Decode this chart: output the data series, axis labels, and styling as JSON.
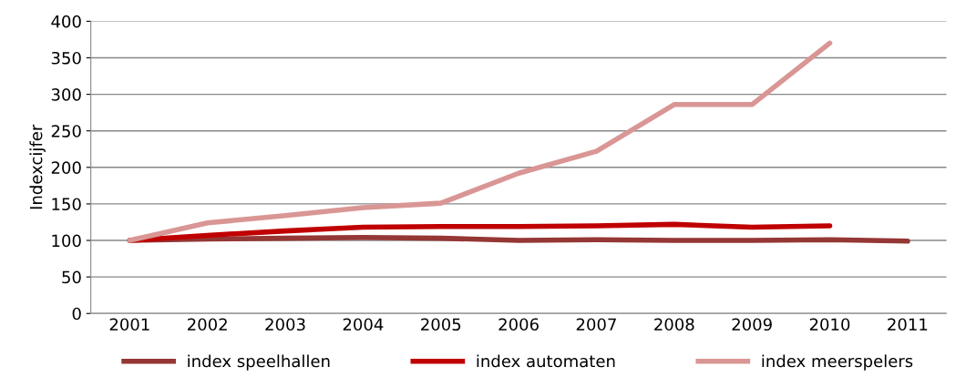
{
  "chart_data": {
    "type": "line",
    "ylabel": "Indexcijfer",
    "categories": [
      "2001",
      "2002",
      "2003",
      "2004",
      "2005",
      "2006",
      "2007",
      "2008",
      "2009",
      "2010",
      "2011"
    ],
    "series": [
      {
        "name": "index speelhallen",
        "color": "#953735",
        "values": [
          100,
          102,
          103,
          104,
          103,
          100,
          101,
          100,
          100,
          101,
          99
        ]
      },
      {
        "name": "index automaten",
        "color": "#c00000",
        "values": [
          100,
          107,
          113,
          118,
          119,
          119,
          120,
          122,
          118,
          120,
          null
        ]
      },
      {
        "name": "index meerspelers",
        "color": "#d99694",
        "values": [
          100,
          124,
          134,
          145,
          151,
          192,
          222,
          286,
          286,
          370,
          null
        ]
      }
    ],
    "ylim": [
      0,
      400
    ],
    "yticks": [
      0,
      50,
      100,
      150,
      200,
      250,
      300,
      350,
      400
    ],
    "grid": "y",
    "legend": "bottom",
    "marker": "none",
    "line_style": "solid"
  }
}
